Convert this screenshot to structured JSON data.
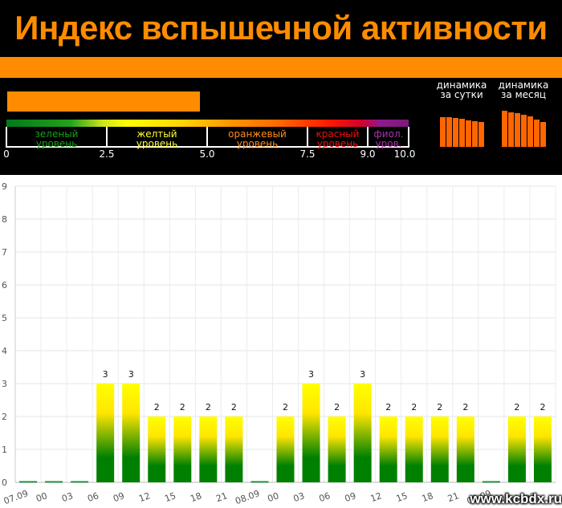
{
  "header": {
    "title": "Индекс вспышечной активности",
    "current_index": 4.8,
    "levels": [
      {
        "line1": "зеленый",
        "line2": "уровень",
        "color": "#1a9e1a"
      },
      {
        "line1": "желтый",
        "line2": "уровень",
        "color": "#ffff33"
      },
      {
        "line1": "оранжевый",
        "line2": "уровень",
        "color": "#ff8c1a"
      },
      {
        "line1": "красный",
        "line2": "уровень",
        "color": "#ee1111"
      },
      {
        "line1": "фиол.",
        "line2": "уров.",
        "color": "#aa33aa"
      }
    ],
    "ticks": [
      "0",
      "2.5",
      "5.0",
      "7.5",
      "9.0",
      "10.0"
    ],
    "dynamics": [
      {
        "line1": "динамика",
        "line2": "за сутки",
        "values": [
          0.59,
          0.58,
          0.57,
          0.55,
          0.53,
          0.51,
          0.49
        ],
        "color": "#ff6600"
      },
      {
        "line1": "динамика",
        "line2": "за месяц",
        "values": [
          0.71,
          0.68,
          0.66,
          0.64,
          0.6,
          0.54,
          0.49
        ],
        "color": "#ff6600"
      }
    ]
  },
  "chart_data": {
    "type": "bar",
    "categories": [
      "07.09",
      "00",
      "03",
      "06",
      "09",
      "12",
      "15",
      "18",
      "21",
      "08.09",
      "00",
      "03",
      "06",
      "09",
      "12",
      "15",
      "18",
      "21",
      "09.09",
      "00",
      "03"
    ],
    "values": [
      0,
      0,
      0,
      3,
      3,
      2,
      2,
      2,
      2,
      0,
      2,
      3,
      2,
      3,
      2,
      2,
      2,
      2,
      0,
      2,
      2
    ],
    "ylim": [
      0,
      9
    ],
    "yticks": [
      0,
      1,
      2,
      3,
      4,
      5,
      6,
      7,
      8,
      9
    ],
    "grid": true,
    "legend": "none",
    "bar_gradient": [
      "#ffff00",
      "#ffe600",
      "#008000",
      "#008000"
    ]
  },
  "watermark": "www.kcbdx.ru"
}
